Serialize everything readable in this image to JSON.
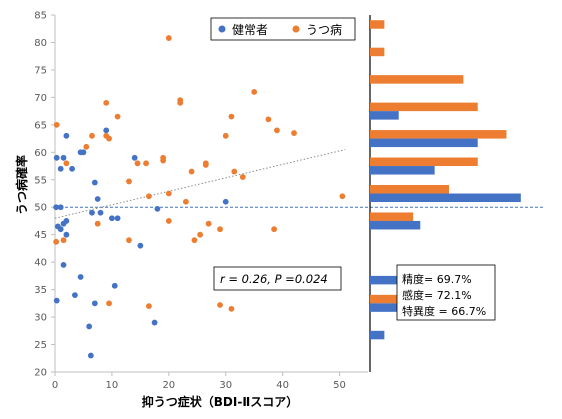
{
  "chart_data": {
    "type": "scatter",
    "xlabel": "抑うつ症状（BDI-Ⅱスコア）",
    "ylabel": "うつ病確率",
    "xlim": [
      0,
      55
    ],
    "ylim": [
      20,
      85
    ],
    "x_ticks": [
      0,
      10,
      20,
      30,
      40,
      50
    ],
    "y_ticks": [
      20,
      25,
      30,
      35,
      40,
      45,
      50,
      55,
      60,
      65,
      70,
      75,
      80,
      85
    ],
    "threshold": 50,
    "trendline": {
      "x": [
        0,
        51
      ],
      "y": [
        48,
        60.5
      ]
    },
    "legend_position": "top-center",
    "annotation": "r = 0.26, P =0.024",
    "series": [
      {
        "name": "健常者",
        "color": "#4472c4",
        "points": [
          [
            0.3,
            59
          ],
          [
            1,
            57
          ],
          [
            1.5,
            59
          ],
          [
            2,
            63
          ],
          [
            3,
            57
          ],
          [
            5,
            60
          ],
          [
            4.5,
            60
          ],
          [
            0.2,
            50
          ],
          [
            1,
            50
          ],
          [
            1.5,
            47
          ],
          [
            2,
            47.5
          ],
          [
            1,
            46
          ],
          [
            0.5,
            46.5
          ],
          [
            2,
            45
          ],
          [
            7,
            54.5
          ],
          [
            7.5,
            51.5
          ],
          [
            6.5,
            49
          ],
          [
            8,
            49
          ],
          [
            10,
            48
          ],
          [
            9,
            64
          ],
          [
            14,
            59
          ],
          [
            15,
            43
          ],
          [
            11,
            48
          ],
          [
            1.5,
            39.5
          ],
          [
            4.5,
            37.3
          ],
          [
            3.5,
            34
          ],
          [
            0.3,
            33
          ],
          [
            7,
            32.5
          ],
          [
            10.5,
            35.7
          ],
          [
            6,
            28.3
          ],
          [
            6.3,
            23
          ],
          [
            17.5,
            29
          ],
          [
            18,
            49.7
          ],
          [
            30,
            51
          ]
        ]
      },
      {
        "name": "うつ病",
        "color": "#ed7d31",
        "points": [
          [
            0.3,
            65
          ],
          [
            2,
            58
          ],
          [
            5.5,
            61
          ],
          [
            6.5,
            63
          ],
          [
            9,
            69
          ],
          [
            9,
            63
          ],
          [
            9.5,
            62.5
          ],
          [
            11,
            66.5
          ],
          [
            13,
            54.7
          ],
          [
            14.5,
            58
          ],
          [
            16,
            58
          ],
          [
            16.5,
            52
          ],
          [
            19,
            59
          ],
          [
            19,
            58.5
          ],
          [
            20,
            80.8
          ],
          [
            20,
            52.5
          ],
          [
            22,
            69.5
          ],
          [
            22,
            69
          ],
          [
            23,
            51
          ],
          [
            24,
            56.5
          ],
          [
            24.5,
            44
          ],
          [
            25.5,
            45
          ],
          [
            26.5,
            58
          ],
          [
            26.5,
            57.7
          ],
          [
            27,
            47
          ],
          [
            29,
            46
          ],
          [
            30,
            63
          ],
          [
            31,
            66.5
          ],
          [
            31.5,
            56.5
          ],
          [
            33,
            55.5
          ],
          [
            35,
            71
          ],
          [
            37.5,
            66
          ],
          [
            38.5,
            46
          ],
          [
            39,
            64
          ],
          [
            42,
            63.5
          ],
          [
            50.5,
            52
          ],
          [
            1.5,
            44
          ],
          [
            0.2,
            43.7
          ],
          [
            7.5,
            47
          ],
          [
            9.5,
            32.5
          ],
          [
            13,
            44
          ],
          [
            16.5,
            32
          ],
          [
            20,
            47.5
          ],
          [
            29,
            32.2
          ],
          [
            31,
            31.5
          ]
        ]
      }
    ],
    "histogram": {
      "bins": [
        80,
        75,
        70,
        65,
        60,
        55,
        50,
        45,
        40,
        35,
        30,
        25
      ],
      "orange_values": [
        2,
        2,
        13,
        15,
        19,
        15,
        11,
        6,
        0,
        0,
        6,
        0
      ],
      "blue_values": [
        0,
        0,
        0,
        4,
        15,
        9,
        21,
        7,
        0,
        6,
        5,
        2
      ],
      "scale_max": 22
    },
    "metrics": [
      "精度= 69.7%",
      "感度= 72.1%",
      "特異度 = 66.7%"
    ]
  }
}
